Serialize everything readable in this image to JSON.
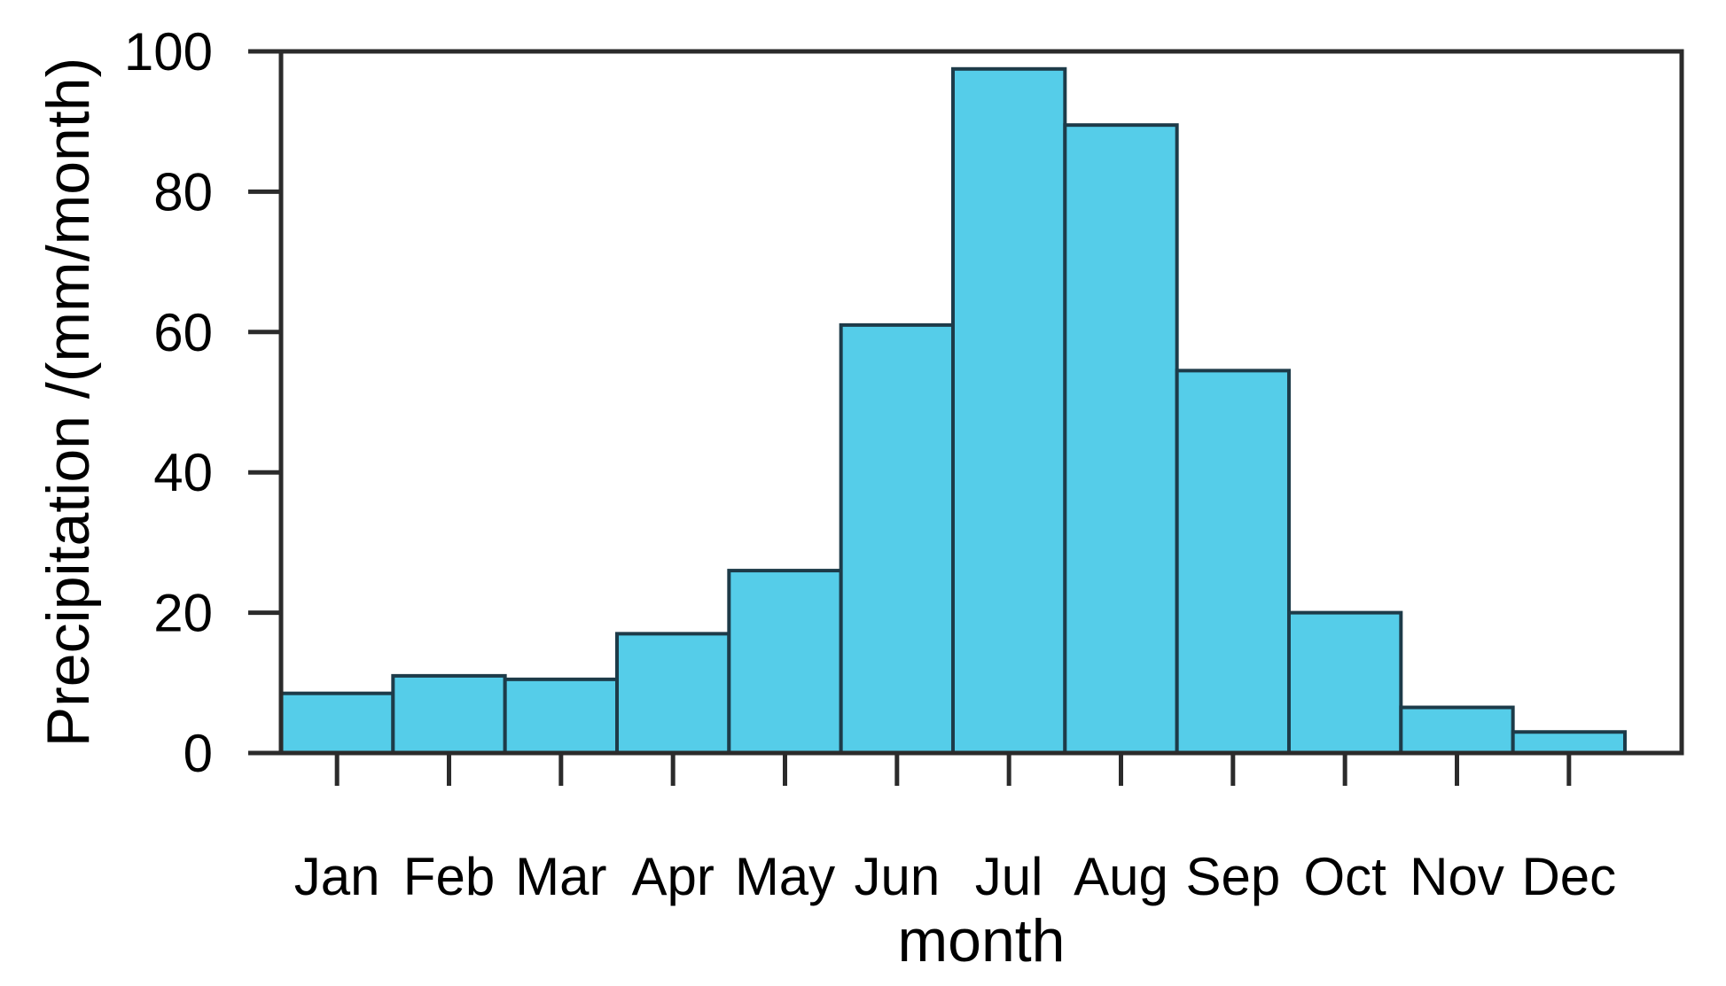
{
  "chart_data": {
    "type": "bar",
    "title": "",
    "xlabel": "month",
    "ylabel": "Precipitation /(mm/month)",
    "categories": [
      "Jan",
      "Feb",
      "Mar",
      "Apr",
      "May",
      "Jun",
      "Jul",
      "Aug",
      "Sep",
      "Oct",
      "Nov",
      "Dec"
    ],
    "values": [
      8.5,
      11,
      10.5,
      17,
      26,
      61,
      97.5,
      89.5,
      54.5,
      20,
      6.5,
      3
    ],
    "ylim": [
      0,
      100
    ],
    "yticks": [
      0,
      20,
      40,
      60,
      80,
      100
    ],
    "grid": false,
    "legend": "none",
    "colors": {
      "bar_fill": "#55cde9",
      "bar_stroke": "#1d3b49",
      "axis": "#2b2b2b",
      "text": "#000000",
      "background": "#ffffff"
    }
  }
}
